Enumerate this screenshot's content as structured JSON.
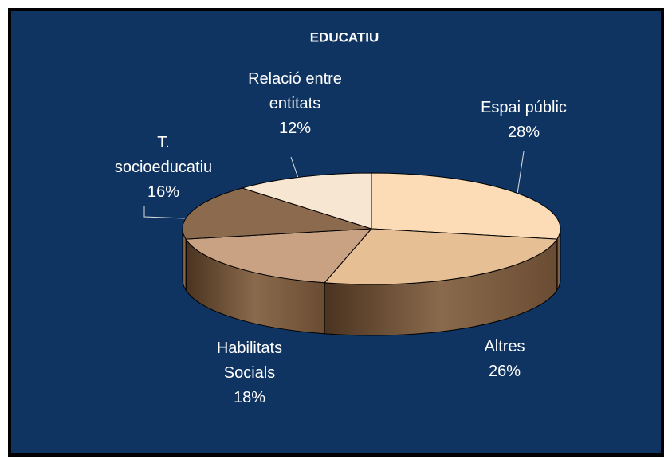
{
  "chart_data": {
    "type": "pie",
    "title": "EDUCATIU",
    "categories": [
      "Espai públic",
      "Altres",
      "Habilitats Socials",
      "T. socioeducatiu",
      "Relació entre entitats"
    ],
    "values": [
      28,
      26,
      18,
      16,
      12
    ],
    "value_labels": [
      "28%",
      "26%",
      "18%",
      "16%",
      "12%"
    ],
    "colors": [
      "#fbdcb6",
      "#e6bf95",
      "#c9a283",
      "#8c6a4e",
      "#f7e6d2"
    ]
  }
}
